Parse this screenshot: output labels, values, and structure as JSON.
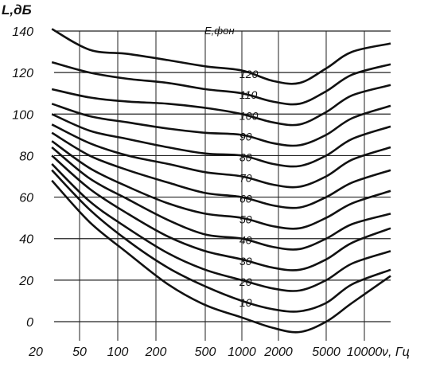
{
  "chart_data": {
    "type": "line",
    "ylabel": "L,дБ",
    "xlabel": "ν, Гц",
    "legend_title": "E,фон",
    "x_ticks": [
      {
        "label": "20",
        "value": 20
      },
      {
        "label": "50",
        "value": 50
      },
      {
        "label": "100",
        "value": 100
      },
      {
        "label": "200",
        "value": 200
      },
      {
        "label": "500",
        "value": 500
      },
      {
        "label": "1000",
        "value": 1000
      },
      {
        "label": "2000",
        "value": 2000
      },
      {
        "label": "5000",
        "value": 5000
      },
      {
        "label": "10000",
        "value": 10000
      }
    ],
    "y_ticks": [
      {
        "label": "140",
        "value": 140
      },
      {
        "label": "120",
        "value": 120
      },
      {
        "label": "100",
        "value": 100
      },
      {
        "label": "80",
        "value": 80
      },
      {
        "label": "60",
        "value": 60
      },
      {
        "label": "40",
        "value": 40
      },
      {
        "label": "20",
        "value": 20
      },
      {
        "label": "0",
        "value": 0
      }
    ],
    "ylim": [
      -8,
      140
    ],
    "grid": "horizontal",
    "x": [
      28,
      60,
      120,
      250,
      500,
      1000,
      1800,
      3000,
      5000,
      8000,
      14000
    ],
    "series": [
      {
        "name": "120",
        "values": [
          141,
          131,
          129,
          126,
          123,
          121,
          116,
          115,
          122,
          130,
          134
        ]
      },
      {
        "name": "110",
        "values": [
          125,
          120,
          117,
          115,
          112,
          110,
          106,
          105,
          111,
          119,
          124
        ]
      },
      {
        "name": "100",
        "values": [
          112,
          108,
          106,
          105,
          103,
          100,
          96,
          95,
          101,
          109,
          114
        ]
      },
      {
        "name": "90",
        "values": [
          105,
          99,
          96,
          93,
          91,
          90,
          86,
          85,
          90,
          98,
          104
        ]
      },
      {
        "name": "80",
        "values": [
          100,
          92,
          88,
          84,
          81,
          80,
          76,
          75,
          80,
          88,
          94
        ]
      },
      {
        "name": "70",
        "values": [
          95,
          86,
          80,
          76,
          72,
          70,
          66,
          65,
          70,
          78,
          84
        ]
      },
      {
        "name": "60",
        "values": [
          91,
          80,
          73,
          67,
          62,
          60,
          56,
          55,
          60,
          67,
          73
        ]
      },
      {
        "name": "50",
        "values": [
          87,
          74,
          65,
          57,
          52,
          50,
          46,
          45,
          50,
          57,
          63
        ]
      },
      {
        "name": "40",
        "values": [
          84,
          69,
          59,
          49,
          42,
          40,
          36,
          35,
          40,
          47,
          52
        ]
      },
      {
        "name": "30",
        "values": [
          80,
          64,
          52,
          41,
          34,
          30,
          26,
          25,
          30,
          38,
          45
        ]
      },
      {
        "name": "20",
        "values": [
          76,
          58,
          45,
          33,
          25,
          20,
          16,
          15,
          20,
          28,
          34
        ]
      },
      {
        "name": "10",
        "values": [
          73,
          54,
          39,
          26,
          17,
          10,
          6,
          5,
          9,
          18,
          25
        ]
      },
      {
        "name": "",
        "values": [
          68,
          48,
          33,
          18,
          8,
          2,
          -3,
          -5,
          0,
          9,
          22
        ]
      }
    ]
  }
}
